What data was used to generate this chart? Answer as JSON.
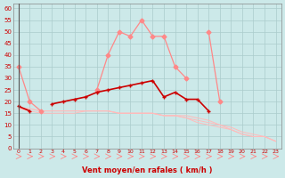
{
  "x": [
    0,
    1,
    2,
    3,
    4,
    5,
    6,
    7,
    8,
    9,
    10,
    11,
    12,
    13,
    14,
    15,
    16,
    17,
    18,
    19,
    20,
    21,
    22,
    23
  ],
  "line_dark_red": [
    18,
    16,
    null,
    19,
    20,
    21,
    22,
    24,
    25,
    26,
    27,
    28,
    29,
    22,
    24,
    21,
    21,
    16,
    null,
    null,
    null,
    null,
    null,
    null
  ],
  "line_light_upper": [
    35,
    20,
    16,
    null,
    null,
    null,
    null,
    25,
    40,
    50,
    48,
    55,
    48,
    48,
    35,
    30,
    null,
    50,
    20,
    null,
    null,
    null,
    null,
    null
  ],
  "line_faint1": [
    17,
    17,
    16,
    16,
    16,
    16,
    16,
    16,
    16,
    15,
    15,
    15,
    15,
    14,
    14,
    13,
    12,
    11,
    10,
    8,
    6,
    5,
    5,
    3
  ],
  "line_faint2": [
    17,
    17,
    16,
    16,
    16,
    16,
    16,
    16,
    16,
    15,
    15,
    15,
    15,
    14,
    14,
    14,
    13,
    12,
    10,
    9,
    7,
    6,
    5,
    3
  ],
  "line_faint3": [
    17,
    16,
    15,
    15,
    15,
    15,
    16,
    16,
    16,
    15,
    15,
    15,
    15,
    14,
    14,
    13,
    11,
    10,
    9,
    8,
    6,
    5,
    5,
    3
  ],
  "bg_color": "#cce9e9",
  "grid_color": "#aacccc",
  "dark_red": "#cc0000",
  "light_red": "#ff8888",
  "faint_red": "#ffbbbb",
  "xlabel": "Vent moyen/en rafales ( km/h )",
  "ylabel_ticks": [
    0,
    5,
    10,
    15,
    20,
    25,
    30,
    35,
    40,
    45,
    50,
    55,
    60
  ],
  "ylim": [
    0,
    62
  ],
  "xlim": [
    -0.5,
    23.5
  ]
}
